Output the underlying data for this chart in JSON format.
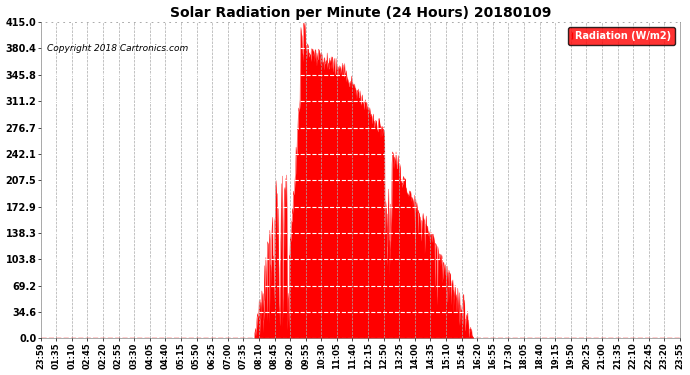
{
  "title": "Solar Radiation per Minute (24 Hours) 20180109",
  "copyright": "Copyright 2018 Cartronics.com",
  "legend_label": "Radiation (W/m2)",
  "y_ticks": [
    0.0,
    34.6,
    69.2,
    103.8,
    138.3,
    172.9,
    207.5,
    242.1,
    276.7,
    311.2,
    345.8,
    380.4,
    415.0
  ],
  "ylim": [
    0.0,
    415.0
  ],
  "background_color": "#ffffff",
  "fill_color": "#ff0000",
  "grid_color": "#cccccc",
  "x_tick_labels": [
    "23:59",
    "01:35",
    "01:10",
    "02:45",
    "02:20",
    "02:55",
    "03:30",
    "04:05",
    "04:40",
    "05:15",
    "05:50",
    "06:25",
    "07:00",
    "07:35",
    "08:10",
    "08:45",
    "09:20",
    "09:55",
    "10:30",
    "11:05",
    "11:40",
    "12:15",
    "12:50",
    "13:25",
    "14:00",
    "14:35",
    "15:10",
    "15:45",
    "16:20",
    "16:55",
    "17:30",
    "18:05",
    "18:40",
    "19:15",
    "19:50",
    "20:25",
    "21:00",
    "21:35",
    "22:10",
    "22:45",
    "23:20",
    "23:55"
  ],
  "n_points": 1440
}
